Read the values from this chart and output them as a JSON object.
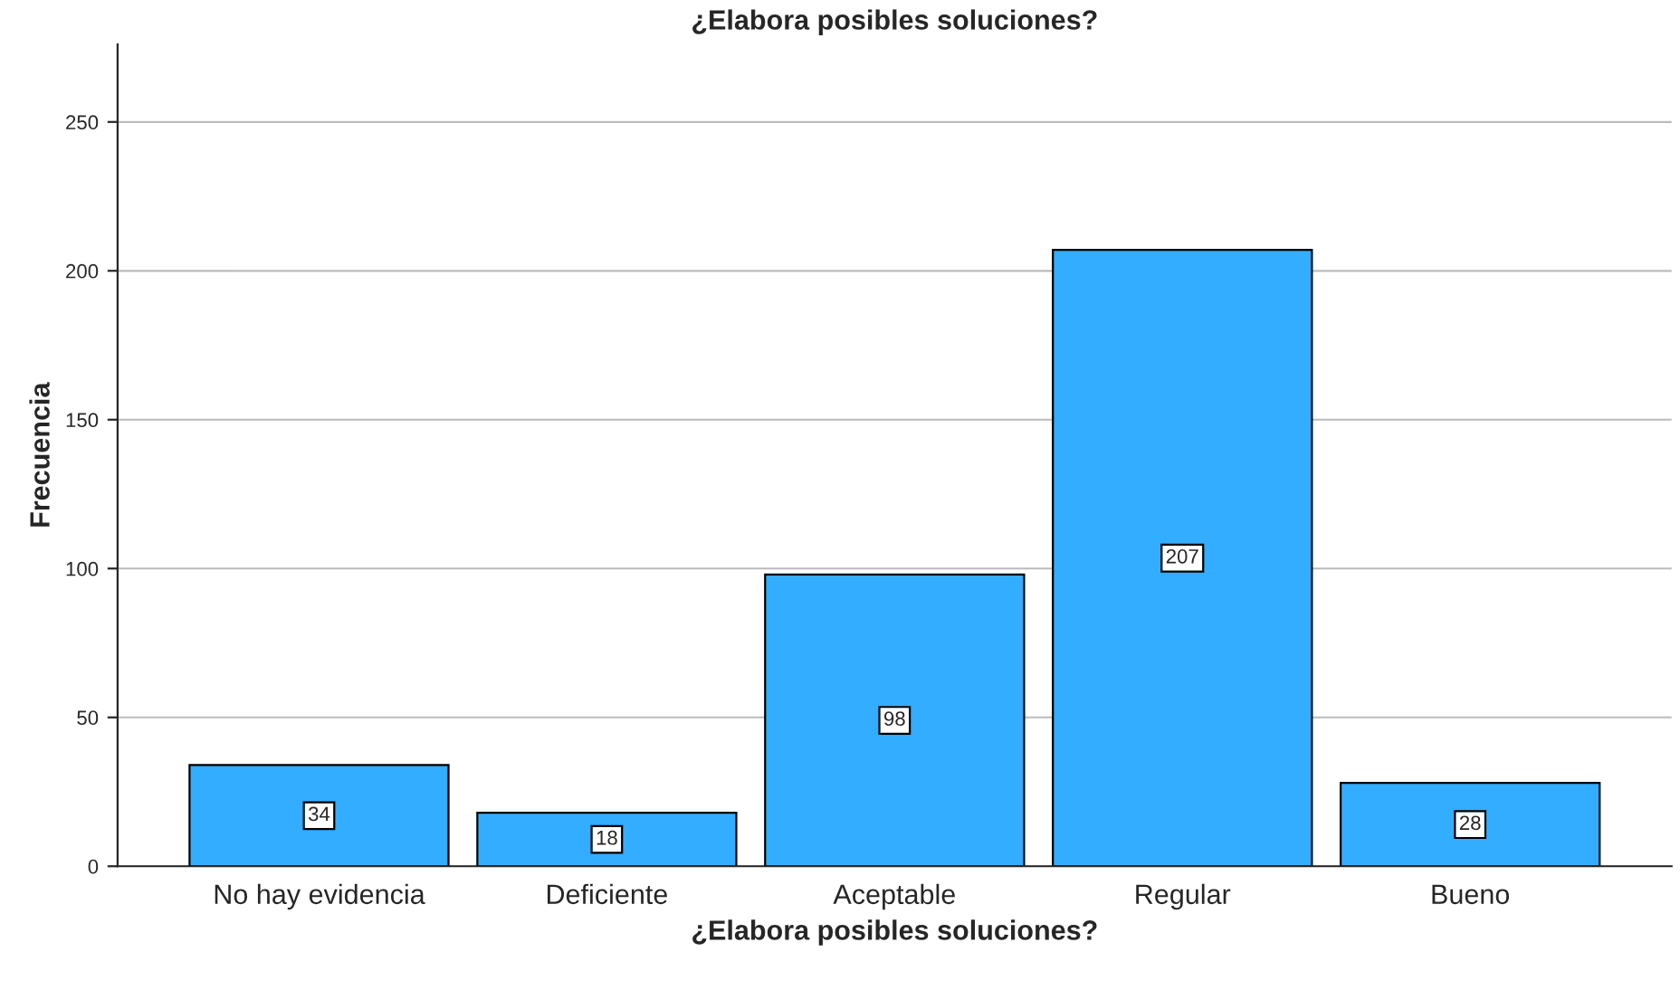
{
  "chart_data": {
    "type": "bar",
    "title": "¿Elabora posibles soluciones?",
    "xlabel": "¿Elabora posibles soluciones?",
    "ylabel": "Frecuencia",
    "categories": [
      "No hay evidencia",
      "Deficiente",
      "Aceptable",
      "Regular",
      "Bueno"
    ],
    "values": [
      34,
      18,
      98,
      207,
      28
    ],
    "color": "#33adff",
    "ylim": [
      0,
      276
    ],
    "yticks": [
      0,
      50,
      100,
      150,
      200,
      250
    ],
    "grid": "y",
    "data_labels": true
  }
}
